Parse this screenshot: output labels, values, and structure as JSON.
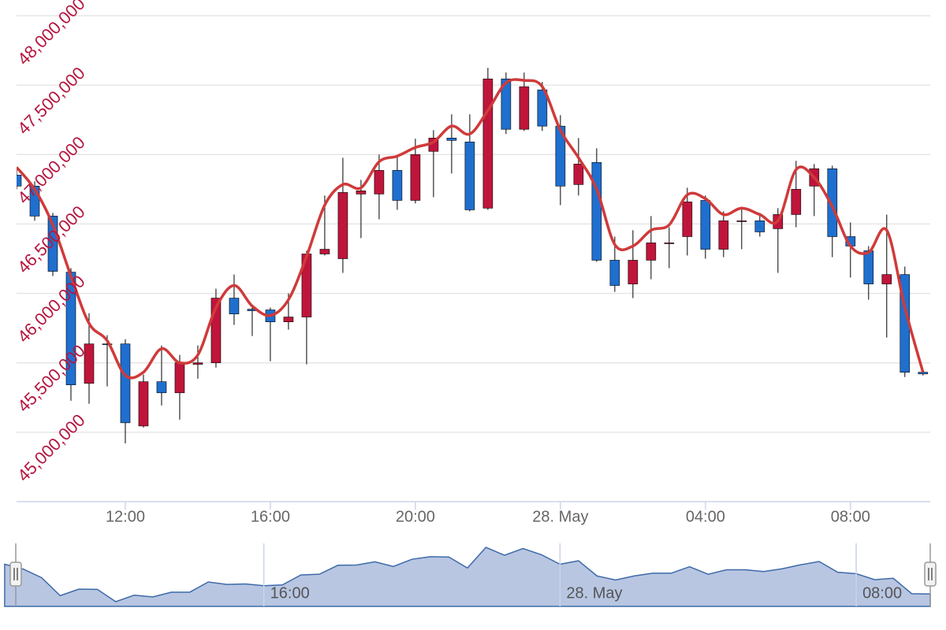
{
  "chart_data": {
    "type": "candlestick",
    "x": [
      9,
      9.5,
      10,
      10.5,
      11,
      11.5,
      12,
      12.5,
      13,
      13.5,
      14,
      14.5,
      15,
      15.5,
      16,
      16.5,
      17,
      17.5,
      18,
      18.5,
      19,
      19.5,
      20,
      20.5,
      21,
      21.5,
      22,
      22.5,
      23,
      23.5,
      24,
      24.5,
      25,
      25.5,
      26,
      26.5,
      27,
      27.5,
      28,
      28.5,
      29,
      29.5,
      30,
      30.5,
      31,
      31.5,
      32,
      32.5,
      33,
      33.5,
      34
    ],
    "open": [
      46852000,
      46773000,
      46557000,
      46153000,
      45352000,
      45636000,
      45636000,
      45045000,
      45364000,
      45284000,
      45489000,
      45500000,
      45966000,
      45886000,
      45881000,
      45795000,
      45830000,
      46284000,
      46250000,
      46716000,
      46716000,
      46886000,
      46670000,
      47023000,
      47119000,
      47091000,
      46614000,
      47545000,
      47182000,
      47466000,
      47205000,
      46784000,
      46943000,
      46239000,
      46068000,
      46239000,
      46358000,
      46409000,
      46670000,
      46318000,
      46517000,
      46523000,
      46466000,
      46568000,
      46773000,
      46898000,
      46409000,
      46307000,
      46068000,
      46136000,
      45432000
    ],
    "high": [
      46892000,
      46807000,
      46580000,
      46182000,
      45858000,
      45699000,
      45670000,
      45415000,
      45625000,
      45557000,
      45625000,
      46034000,
      46136000,
      45909000,
      45898000,
      46000000,
      46307000,
      46705000,
      46977000,
      46818000,
      47000000,
      46989000,
      47114000,
      47176000,
      47290000,
      47290000,
      47625000,
      47591000,
      47591000,
      47523000,
      47284000,
      47119000,
      47045000,
      46409000,
      46455000,
      46557000,
      46477000,
      46761000,
      46705000,
      46591000,
      46625000,
      46580000,
      46614000,
      46955000,
      46932000,
      46920000,
      46511000,
      46341000,
      46568000,
      46193000,
      45443000
    ],
    "low": [
      46750000,
      46523000,
      46125000,
      45227000,
      45205000,
      45330000,
      44920000,
      45034000,
      45193000,
      45091000,
      45386000,
      45466000,
      45773000,
      45693000,
      45511000,
      45739000,
      45489000,
      46273000,
      46148000,
      46398000,
      46534000,
      46602000,
      46648000,
      46693000,
      46864000,
      46591000,
      46602000,
      47148000,
      47170000,
      47170000,
      46636000,
      46705000,
      46227000,
      46011000,
      45966000,
      46102000,
      46182000,
      46273000,
      46250000,
      46261000,
      46318000,
      46409000,
      46148000,
      46477000,
      46557000,
      46261000,
      46114000,
      45955000,
      45682000,
      45398000,
      45409000
    ],
    "close": [
      46773000,
      46557000,
      46159000,
      45341000,
      45636000,
      45631000,
      45068000,
      45364000,
      45284000,
      45500000,
      45500000,
      45966000,
      45852000,
      45875000,
      45795000,
      45830000,
      46284000,
      46318000,
      46727000,
      46739000,
      46886000,
      46670000,
      47000000,
      47119000,
      47102000,
      46602000,
      47545000,
      47182000,
      47489000,
      47205000,
      46773000,
      46932000,
      46239000,
      46057000,
      46239000,
      46364000,
      46364000,
      46659000,
      46318000,
      46523000,
      46523000,
      46443000,
      46568000,
      46750000,
      46898000,
      46409000,
      46341000,
      46068000,
      46136000,
      45432000,
      45420000
    ],
    "up_color": "#c0153b",
    "down_color": "#1f6fcf",
    "line": {
      "color": "#d03a3a",
      "values": [
        46909000,
        46750000,
        46494000,
        46125000,
        45784000,
        45659000,
        45409000,
        45432000,
        45602000,
        45500000,
        45557000,
        45898000,
        46057000,
        45909000,
        45841000,
        45955000,
        46267000,
        46636000,
        46784000,
        46761000,
        46949000,
        46989000,
        47051000,
        47091000,
        47205000,
        47148000,
        47318000,
        47517000,
        47534000,
        47489000,
        47176000,
        46977000,
        46750000,
        46352000,
        46341000,
        46455000,
        46494000,
        46710000,
        46682000,
        46568000,
        46614000,
        46568000,
        46523000,
        46892000,
        46835000,
        46625000,
        46341000,
        46295000,
        46455000,
        45898000,
        45432000
      ]
    },
    "xlim": [
      9,
      34.2
    ],
    "xticks": [
      {
        "value": 12,
        "label": "12:00"
      },
      {
        "value": 16,
        "label": "16:00"
      },
      {
        "value": 20,
        "label": "20:00"
      },
      {
        "value": 24,
        "label": "28. May"
      },
      {
        "value": 28,
        "label": "04:00"
      },
      {
        "value": 32,
        "label": "08:00"
      }
    ],
    "ylim": [
      44500000,
      48000000
    ],
    "yticks": [
      {
        "value": 45000000,
        "label": "45,000,000"
      },
      {
        "value": 45500000,
        "label": "45,500,000"
      },
      {
        "value": 46000000,
        "label": "46,000,000"
      },
      {
        "value": 46500000,
        "label": "46,500,000"
      },
      {
        "value": 47000000,
        "label": "47,000,000"
      },
      {
        "value": 47500000,
        "label": "47,500,000"
      },
      {
        "value": 48000000,
        "label": "48,000,000"
      }
    ],
    "grid": true,
    "navigator": {
      "xlim": [
        9.3,
        34.0
      ],
      "xticks": [
        {
          "value": 16,
          "label": "16:00"
        },
        {
          "value": 24,
          "label": "28. May"
        },
        {
          "value": 32,
          "label": "08:00"
        }
      ]
    }
  }
}
